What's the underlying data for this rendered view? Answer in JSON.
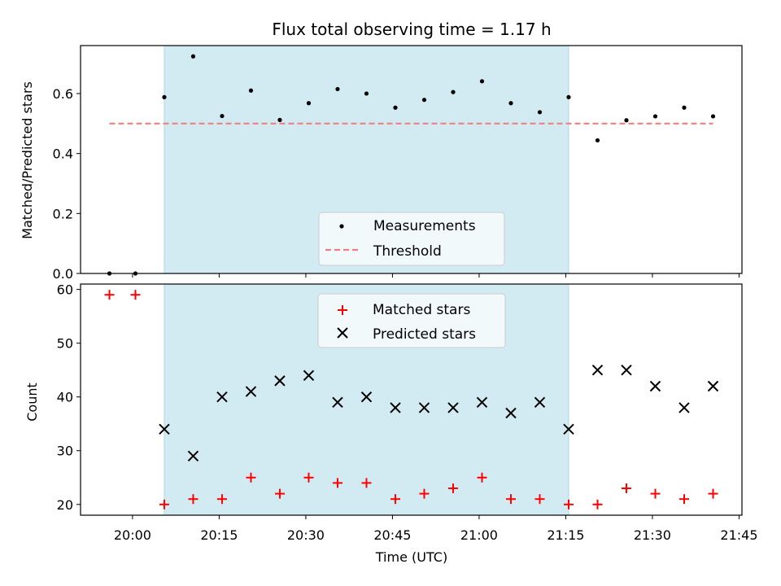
{
  "chart_data": [
    {
      "type": "scatter",
      "title": "Flux total observing time = 1.17 h",
      "ylabel": "Matched/Predicted stars",
      "xlabel": "",
      "ylim": [
        0,
        0.76
      ],
      "yticks": [
        "0.0",
        "0.2",
        "0.4",
        "0.6"
      ],
      "shaded_interval": [
        "20:05:30",
        "21:15:30"
      ],
      "series": [
        {
          "name": "Measurements",
          "marker": "dot",
          "color": "#000000",
          "x": [
            "19:56:00",
            "20:00:30",
            "20:05:30",
            "20:10:30",
            "20:15:30",
            "20:20:30",
            "20:25:30",
            "20:30:30",
            "20:35:30",
            "20:40:30",
            "20:45:30",
            "20:50:30",
            "20:55:30",
            "21:00:30",
            "21:05:30",
            "21:10:30",
            "21:15:30",
            "21:20:30",
            "21:25:30",
            "21:30:30",
            "21:35:30",
            "21:40:30"
          ],
          "y": [
            0.0,
            0.0,
            0.588,
            0.724,
            0.525,
            0.61,
            0.512,
            0.568,
            0.615,
            0.6,
            0.553,
            0.579,
            0.605,
            0.641,
            0.568,
            0.538,
            0.588,
            0.444,
            0.511,
            0.524,
            0.553,
            0.524
          ]
        },
        {
          "name": "Threshold",
          "style": "dashed",
          "color": "#f08080",
          "x": [
            "19:56:00",
            "21:40:30"
          ],
          "y": [
            0.5,
            0.5
          ]
        }
      ],
      "legend": "bottom-center"
    },
    {
      "type": "scatter",
      "title": "",
      "ylabel": "Count",
      "xlabel": "Time (UTC)",
      "ylim": [
        18,
        61
      ],
      "yticks": [
        "20",
        "30",
        "40",
        "50",
        "60"
      ],
      "xlim": [
        "19:51:00",
        "21:45:30"
      ],
      "xticks": [
        "20:00",
        "20:15",
        "20:30",
        "20:45",
        "21:00",
        "21:15",
        "21:30",
        "21:45"
      ],
      "shaded_interval": [
        "20:05:30",
        "21:15:30"
      ],
      "series": [
        {
          "name": "Matched stars",
          "marker": "plus",
          "color": "#ff0000",
          "x": [
            "19:56:00",
            "20:00:30",
            "20:05:30",
            "20:10:30",
            "20:15:30",
            "20:20:30",
            "20:25:30",
            "20:30:30",
            "20:35:30",
            "20:40:30",
            "20:45:30",
            "20:50:30",
            "20:55:30",
            "21:00:30",
            "21:05:30",
            "21:10:30",
            "21:15:30",
            "21:20:30",
            "21:25:30",
            "21:30:30",
            "21:35:30",
            "21:40:30"
          ],
          "y": [
            59,
            59,
            20,
            21,
            21,
            25,
            22,
            25,
            24,
            24,
            21,
            22,
            23,
            25,
            21,
            21,
            20,
            20,
            23,
            22,
            21,
            22
          ]
        },
        {
          "name": "Predicted stars",
          "marker": "x",
          "color": "#000000",
          "x": [
            "20:05:30",
            "20:10:30",
            "20:15:30",
            "20:20:30",
            "20:25:30",
            "20:30:30",
            "20:35:30",
            "20:40:30",
            "20:45:30",
            "20:50:30",
            "20:55:30",
            "21:00:30",
            "21:05:30",
            "21:10:30",
            "21:15:30",
            "21:20:30",
            "21:25:30",
            "21:30:30",
            "21:35:30",
            "21:40:30"
          ],
          "y": [
            34,
            29,
            40,
            41,
            43,
            44,
            39,
            40,
            38,
            38,
            38,
            39,
            37,
            39,
            34,
            45,
            45,
            42,
            38,
            42
          ]
        }
      ],
      "legend": "top-center"
    }
  ],
  "colors": {
    "shade": "#add8e6",
    "axis": "#000000"
  }
}
